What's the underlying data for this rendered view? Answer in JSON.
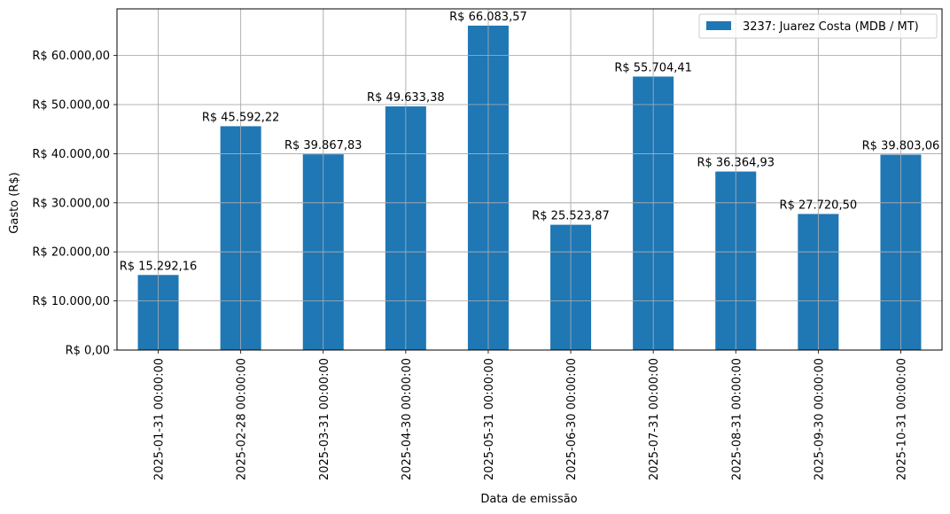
{
  "chart_data": {
    "type": "bar",
    "xlabel": "Data de emissão",
    "ylabel": "Gasto (R$)",
    "ylim": [
      0,
      69500
    ],
    "yticks": [
      0,
      10000,
      20000,
      30000,
      40000,
      50000,
      60000
    ],
    "ytick_labels": [
      "R$ 0,00",
      "R$ 10.000,00",
      "R$ 20.000,00",
      "R$ 30.000,00",
      "R$ 40.000,00",
      "R$ 50.000,00",
      "R$ 60.000,00"
    ],
    "grid": true,
    "legend_position": "top-right",
    "categories": [
      "2025-01-31 00:00:00",
      "2025-02-28 00:00:00",
      "2025-03-31 00:00:00",
      "2025-04-30 00:00:00",
      "2025-05-31 00:00:00",
      "2025-06-30 00:00:00",
      "2025-07-31 00:00:00",
      "2025-08-31 00:00:00",
      "2025-09-30 00:00:00",
      "2025-10-31 00:00:00"
    ],
    "series": [
      {
        "name": "3237: Juarez Costa (MDB / MT)",
        "color": "#1f77b4",
        "values": [
          15292.16,
          45592.22,
          39867.83,
          49633.38,
          66083.57,
          25523.87,
          55704.41,
          36364.93,
          27720.5,
          39803.06
        ],
        "labels": [
          "R$ 15.292,16",
          "R$ 45.592,22",
          "R$ 39.867,83",
          "R$ 49.633,38",
          "R$ 66.083,57",
          "R$ 25.523,87",
          "R$ 55.704,41",
          "R$ 36.364,93",
          "R$ 27.720,50",
          "R$ 39.803,06"
        ]
      }
    ]
  }
}
